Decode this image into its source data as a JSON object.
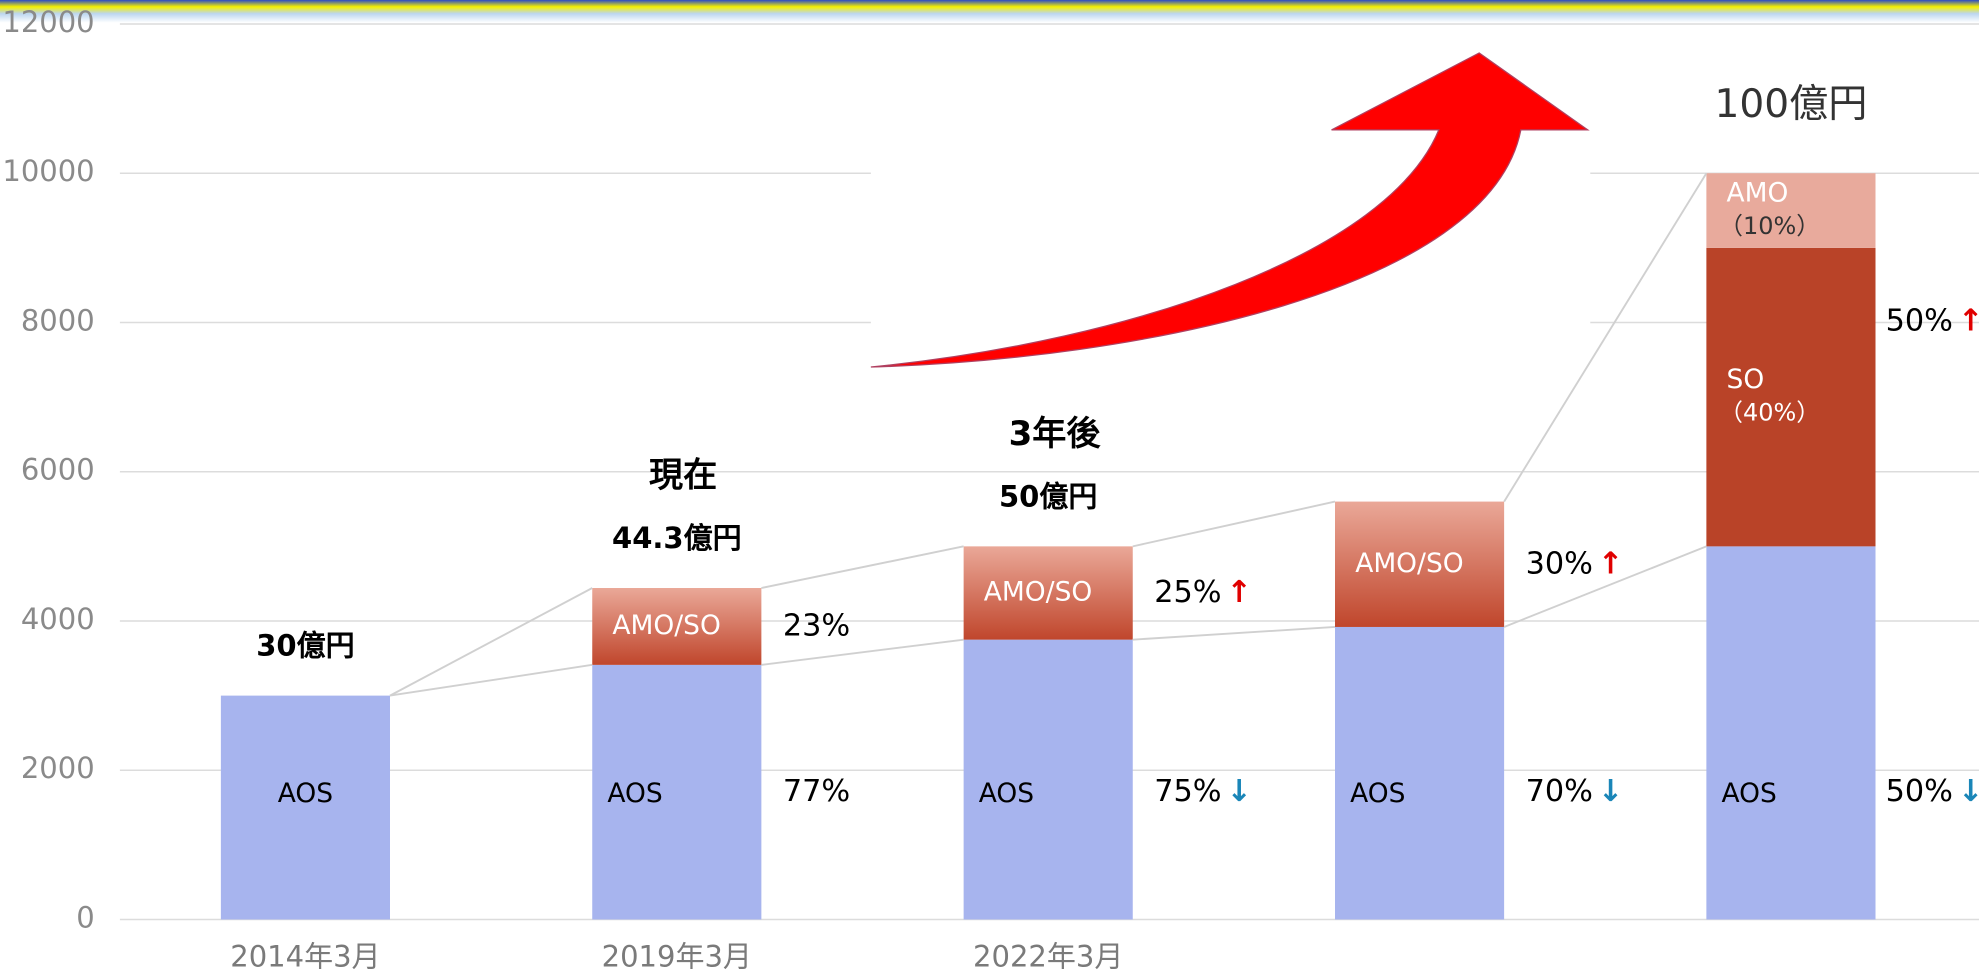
{
  "chart_data": {
    "type": "bar",
    "stacked": true,
    "categories": [
      "2014年3月",
      "2019年3月",
      "2022年3月",
      null,
      null
    ],
    "ylim": [
      0,
      12000
    ],
    "yticks": [
      0,
      2000,
      4000,
      6000,
      8000,
      10000,
      12000
    ],
    "grid": true,
    "series": [
      {
        "name": "AOS",
        "color": "#a7b4ee",
        "text_color": "#000000",
        "values": [
          3000,
          3412,
          3750,
          3920,
          5000
        ],
        "share_labels": [
          null,
          "77%",
          "75%",
          "70%",
          "50%"
        ],
        "share_arrows": [
          null,
          null,
          "↓",
          "↓",
          "↓"
        ],
        "arrow_color": "#1a86b8"
      },
      {
        "name": "AMO/SO",
        "color": "#c0462c",
        "gradient_top": "#eaa898",
        "text_color": "#ffffff",
        "values": [
          null,
          1030,
          1250,
          1680,
          null
        ],
        "share_labels": [
          null,
          "23%",
          "25%",
          "30%",
          null
        ],
        "share_arrows": [
          null,
          null,
          "↑",
          "↑",
          null
        ],
        "arrow_color": "#e00000"
      },
      {
        "name": "SO",
        "color": "#b94328",
        "text_color": "#ffffff",
        "values": [
          null,
          null,
          null,
          null,
          4000
        ],
        "inner_notes": [
          null,
          null,
          null,
          null,
          "（40%）"
        ],
        "share_labels": [
          null,
          null,
          null,
          null,
          "50%"
        ],
        "share_arrows": [
          null,
          null,
          null,
          null,
          "↑"
        ],
        "arrow_color": "#e00000"
      },
      {
        "name": "AMO",
        "color": "#e8aa9c",
        "text_color": "#ffffff",
        "note_color": "#333333",
        "values": [
          null,
          null,
          null,
          null,
          1000
        ],
        "inner_notes": [
          null,
          null,
          null,
          null,
          "（10%）"
        ]
      }
    ],
    "totals": [
      "30億円",
      "44.3億円",
      "50億円",
      null,
      "100億円"
    ],
    "period_labels": [
      null,
      "現在",
      "3年後",
      null,
      null
    ]
  }
}
